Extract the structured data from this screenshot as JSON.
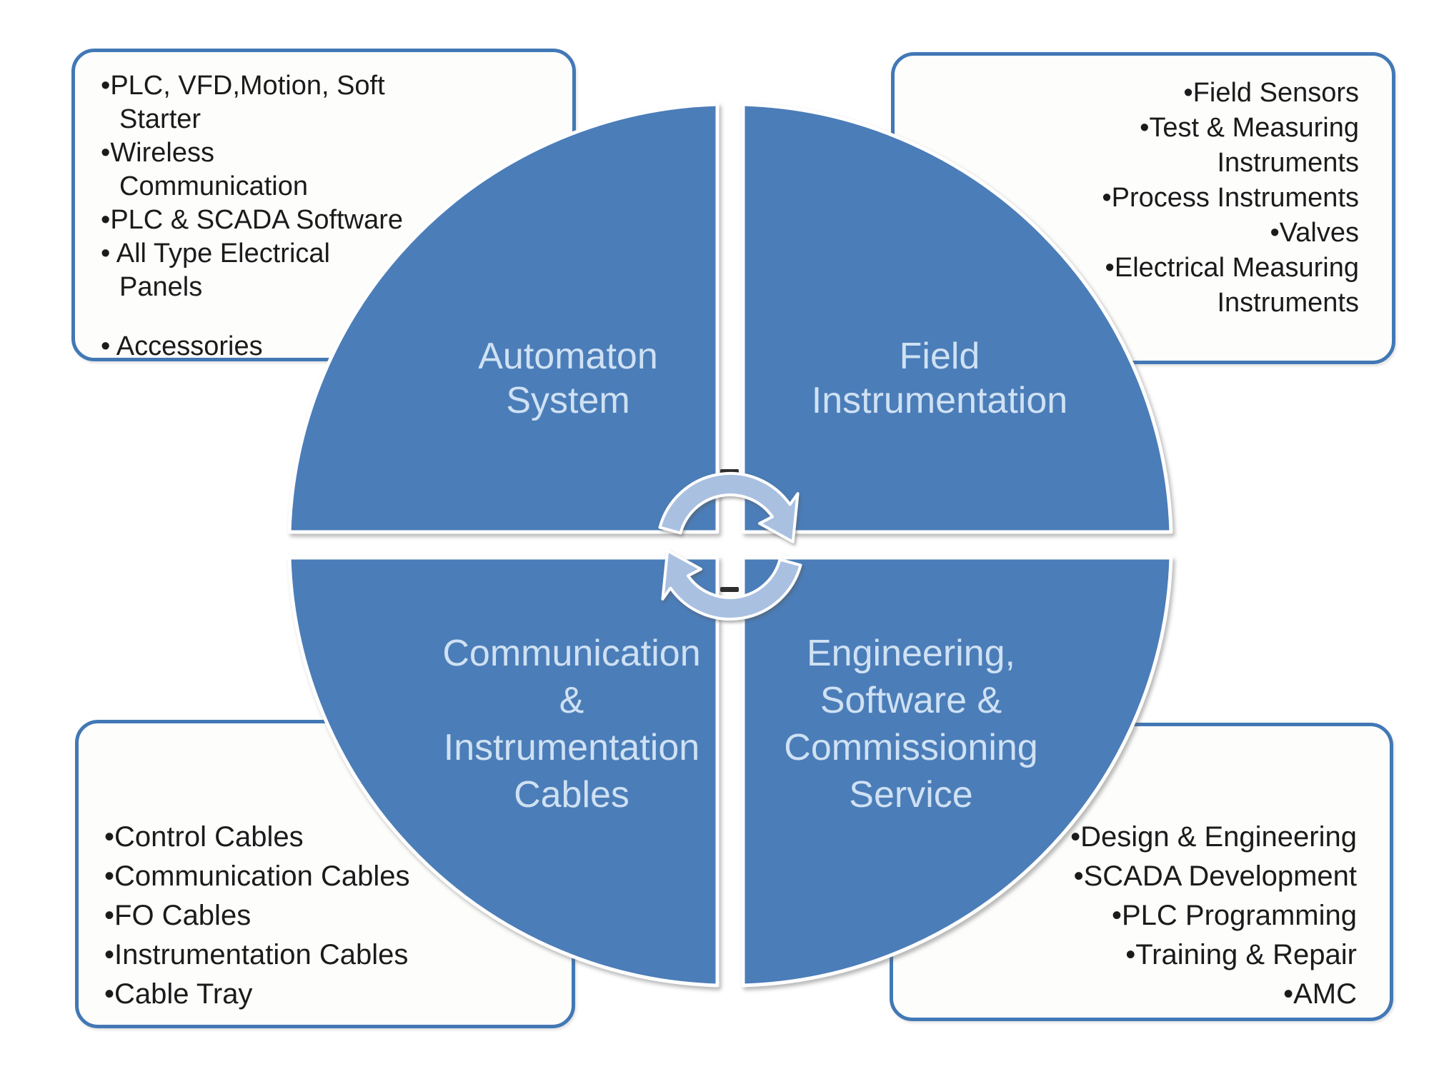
{
  "diagram": {
    "quadrants": {
      "top_left": {
        "label_lines": [
          "Automaton",
          "System"
        ]
      },
      "top_right": {
        "label_lines": [
          "Field",
          "Instrumentation"
        ]
      },
      "bottom_left": {
        "label_lines": [
          "Communication",
          "&",
          "Instrumentation",
          "Cables"
        ]
      },
      "bottom_right": {
        "label_lines": [
          "Engineering,",
          "Software &",
          "Commissioning",
          "Service"
        ]
      }
    },
    "callouts": {
      "top_left": {
        "items": [
          {
            "lines": [
              "PLC, VFD,Motion, Soft",
              "Starter"
            ]
          },
          {
            "lines": [
              "Wireless",
              "Communication"
            ]
          },
          {
            "lines": [
              "PLC & SCADA Software"
            ]
          },
          {
            "lines": [
              "All Type Electrical",
              "Panels"
            ],
            "spaced_bullet": true
          },
          {
            "lines": [
              "Accessories"
            ],
            "spaced_bullet": true,
            "gap_before": true
          }
        ]
      },
      "top_right": {
        "items": [
          {
            "lines": [
              "Field Sensors"
            ]
          },
          {
            "lines": [
              "Test & Measuring",
              "Instruments"
            ]
          },
          {
            "lines": [
              "Process Instruments"
            ]
          },
          {
            "lines": [
              "Valves"
            ]
          },
          {
            "lines": [
              "Electrical Measuring",
              "Instruments"
            ]
          }
        ]
      },
      "bottom_left": {
        "items": [
          {
            "lines": [
              "Control Cables"
            ]
          },
          {
            "lines": [
              "Communication Cables"
            ]
          },
          {
            "lines": [
              "FO Cables"
            ]
          },
          {
            "lines": [
              "Instrumentation Cables"
            ]
          },
          {
            "lines": [
              "Cable Tray"
            ]
          }
        ]
      },
      "bottom_right": {
        "items": [
          {
            "lines": [
              "Design & Engineering"
            ]
          },
          {
            "lines": [
              "SCADA Development"
            ]
          },
          {
            "lines": [
              "PLC Programming"
            ]
          },
          {
            "lines": [
              "Training & Repair"
            ]
          },
          {
            "lines": [
              "AMC"
            ]
          }
        ]
      }
    },
    "center_icon": "cycle-arrows",
    "colors": {
      "quadrant_fill": "#4b7db8",
      "box_border": "#4278b5",
      "label_text": "#cfe1f3",
      "body_text": "#1b1b1b",
      "icon_fill": "#a9c0e1"
    }
  }
}
